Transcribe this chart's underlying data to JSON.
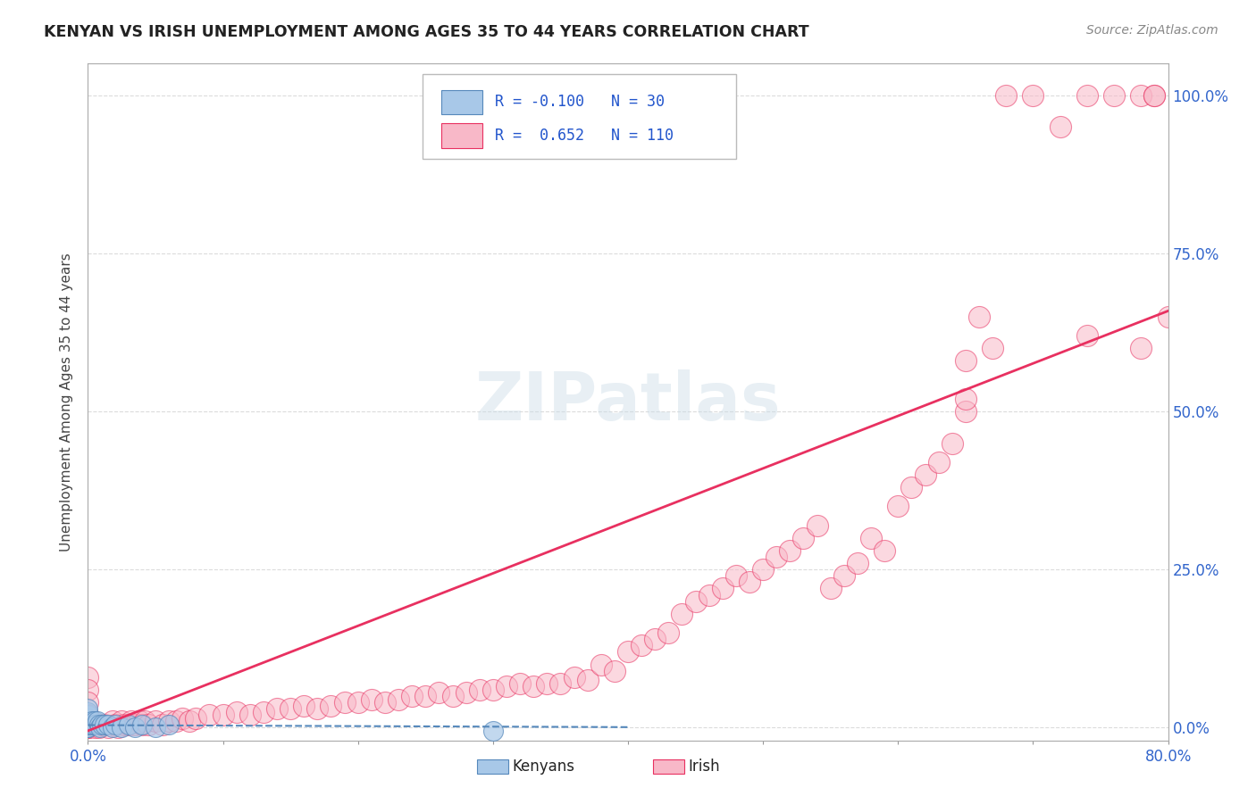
{
  "title": "KENYAN VS IRISH UNEMPLOYMENT AMONG AGES 35 TO 44 YEARS CORRELATION CHART",
  "source": "Source: ZipAtlas.com",
  "ylabel": "Unemployment Among Ages 35 to 44 years",
  "yticks": [
    0.0,
    0.25,
    0.5,
    0.75,
    1.0
  ],
  "ytick_labels": [
    "0.0%",
    "25.0%",
    "50.0%",
    "75.0%",
    "100.0%"
  ],
  "xmin": 0.0,
  "xmax": 0.8,
  "ymin": -0.02,
  "ymax": 1.05,
  "kenyan_R": -0.1,
  "kenyan_N": 30,
  "irish_R": 0.652,
  "irish_N": 110,
  "kenyan_color": "#a8c8e8",
  "irish_color": "#f8b8c8",
  "kenyan_edge_color": "#5588bb",
  "irish_edge_color": "#e83060",
  "irish_line_color": "#e83060",
  "kenyan_line_color": "#5588bb",
  "watermark": "ZIPatlas",
  "legend_label_1": "Kenyans",
  "legend_label_2": "Irish",
  "background_color": "#ffffff",
  "grid_color": "#cccccc",
  "irish_x": [
    0.0,
    0.0,
    0.0,
    0.0,
    0.0,
    0.0,
    0.0,
    0.0,
    0.0,
    0.0,
    0.005,
    0.008,
    0.01,
    0.012,
    0.015,
    0.018,
    0.02,
    0.022,
    0.025,
    0.027,
    0.03,
    0.032,
    0.035,
    0.038,
    0.04,
    0.042,
    0.045,
    0.05,
    0.055,
    0.06,
    0.065,
    0.07,
    0.075,
    0.08,
    0.09,
    0.1,
    0.11,
    0.12,
    0.13,
    0.14,
    0.15,
    0.16,
    0.17,
    0.18,
    0.19,
    0.2,
    0.21,
    0.22,
    0.23,
    0.24,
    0.25,
    0.26,
    0.27,
    0.28,
    0.29,
    0.3,
    0.31,
    0.32,
    0.33,
    0.34,
    0.35,
    0.36,
    0.37,
    0.38,
    0.39,
    0.4,
    0.41,
    0.42,
    0.43,
    0.44,
    0.45,
    0.46,
    0.47,
    0.48,
    0.49,
    0.5,
    0.51,
    0.52,
    0.53,
    0.54,
    0.55,
    0.56,
    0.57,
    0.58,
    0.59,
    0.6,
    0.61,
    0.62,
    0.63,
    0.64,
    0.65,
    0.65,
    0.66,
    0.67,
    0.68,
    0.7,
    0.72,
    0.74,
    0.76,
    0.78,
    0.79,
    0.79,
    0.8,
    0.65,
    0.74,
    0.78,
    0.0,
    0.0,
    0.0,
    0.0
  ],
  "irish_y": [
    0.0,
    0.0,
    0.0,
    0.005,
    0.005,
    0.005,
    0.01,
    0.01,
    0.01,
    0.02,
    0.0,
    0.0,
    0.005,
    0.005,
    0.0,
    0.01,
    0.005,
    0.0,
    0.01,
    0.005,
    0.005,
    0.01,
    0.005,
    0.01,
    0.005,
    0.01,
    0.005,
    0.01,
    0.005,
    0.01,
    0.01,
    0.015,
    0.01,
    0.015,
    0.02,
    0.02,
    0.025,
    0.02,
    0.025,
    0.03,
    0.03,
    0.035,
    0.03,
    0.035,
    0.04,
    0.04,
    0.045,
    0.04,
    0.045,
    0.05,
    0.05,
    0.055,
    0.05,
    0.055,
    0.06,
    0.06,
    0.065,
    0.07,
    0.065,
    0.07,
    0.07,
    0.08,
    0.075,
    0.1,
    0.09,
    0.12,
    0.13,
    0.14,
    0.15,
    0.18,
    0.2,
    0.21,
    0.22,
    0.24,
    0.23,
    0.25,
    0.27,
    0.28,
    0.3,
    0.32,
    0.22,
    0.24,
    0.26,
    0.3,
    0.28,
    0.35,
    0.38,
    0.4,
    0.42,
    0.45,
    0.5,
    0.52,
    0.65,
    0.6,
    1.0,
    1.0,
    0.95,
    1.0,
    1.0,
    1.0,
    1.0,
    1.0,
    0.65,
    0.58,
    0.62,
    0.6,
    0.08,
    0.06,
    0.04,
    0.02
  ],
  "kenyan_x": [
    0.0,
    0.0,
    0.0,
    0.0,
    0.0,
    0.0,
    0.0,
    0.0,
    0.0,
    0.0,
    0.002,
    0.003,
    0.004,
    0.005,
    0.006,
    0.007,
    0.008,
    0.009,
    0.01,
    0.012,
    0.015,
    0.018,
    0.02,
    0.025,
    0.03,
    0.035,
    0.04,
    0.05,
    0.06,
    0.3
  ],
  "kenyan_y": [
    0.0,
    0.0,
    0.005,
    0.005,
    0.01,
    0.01,
    0.015,
    0.02,
    0.025,
    0.03,
    0.005,
    0.01,
    0.005,
    0.01,
    0.005,
    0.01,
    0.005,
    0.0,
    0.005,
    0.005,
    0.005,
    0.0,
    0.005,
    0.0,
    0.005,
    0.0,
    0.005,
    0.0,
    0.005,
    -0.005
  ]
}
